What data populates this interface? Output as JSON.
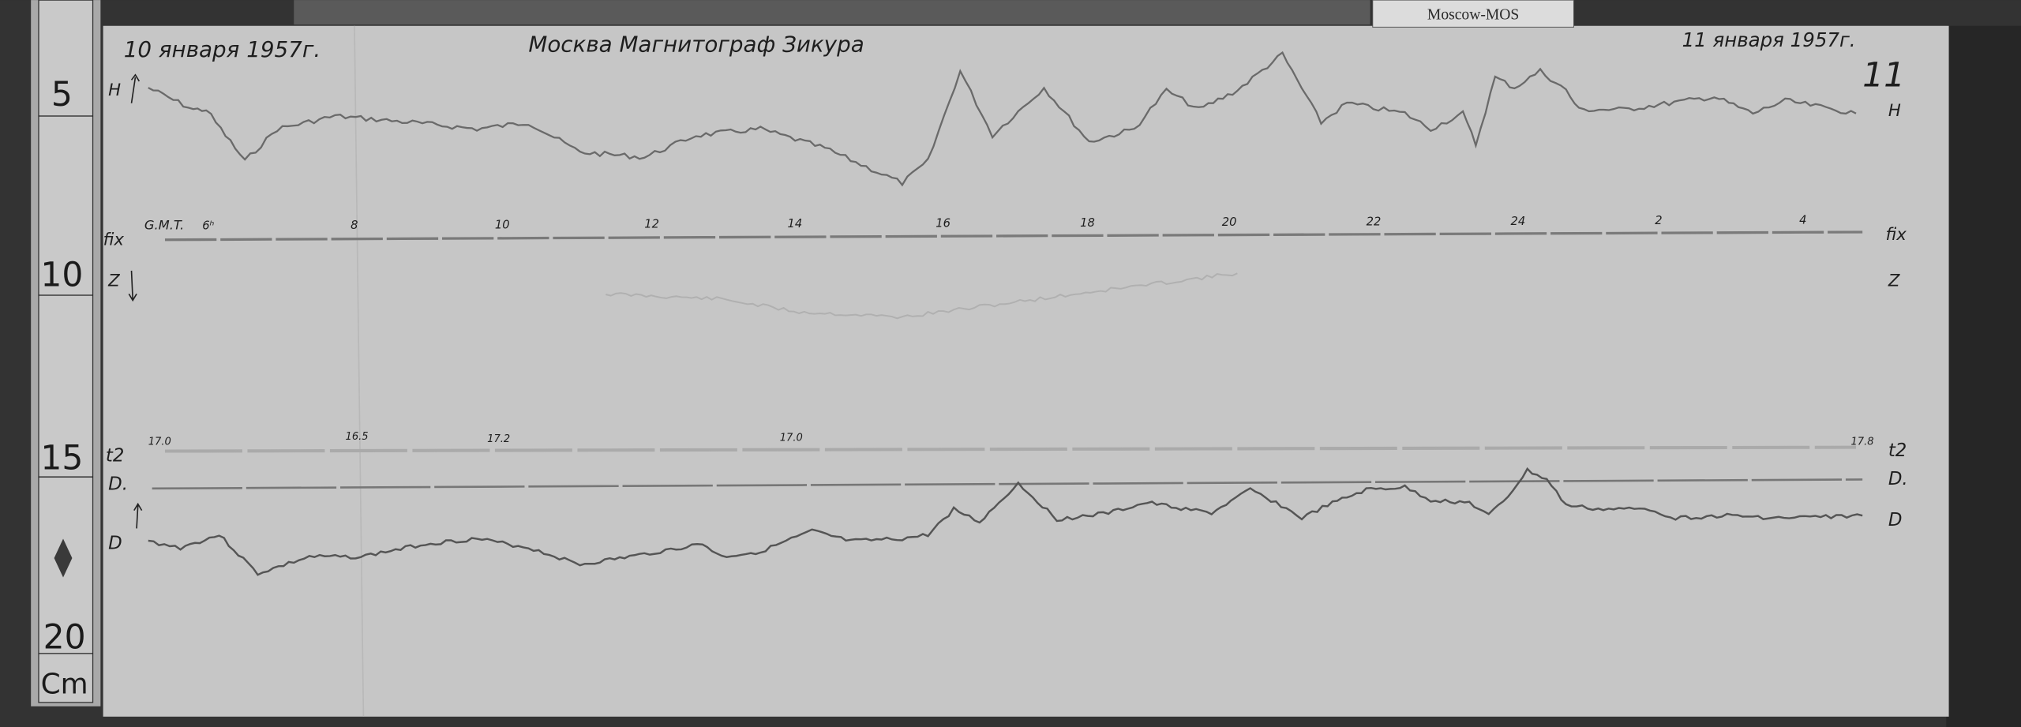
{
  "label_card": {
    "text": "Moscow-MOS"
  },
  "header": {
    "date_left": "10 января 1957г.",
    "title": "Москва Магнитограф Зикура",
    "date_right": "11 января 1957г.",
    "sheet_number": "11"
  },
  "ruler": {
    "marks": [
      "5",
      "10",
      "15",
      "20"
    ],
    "unit": "Cm"
  },
  "traces": {
    "h_label": "H",
    "fix_label": "fix",
    "z_label": "Z",
    "t2_label": "t2",
    "d0_label": "D.",
    "d_label": "D"
  },
  "time_axis": {
    "label": "G.M.T.",
    "ticks": [
      "6ʰ",
      "8",
      "10",
      "12",
      "14",
      "16",
      "18",
      "20",
      "22",
      "24",
      "2",
      "4"
    ]
  },
  "temperature_marks": [
    "17.0",
    "16.5",
    "17.2",
    "17.0",
    "17.8"
  ],
  "colors": {
    "paper": "#c6c6c6",
    "background": "#333333",
    "ink": "#1e1e1e",
    "trace": "#6a6a6a"
  }
}
